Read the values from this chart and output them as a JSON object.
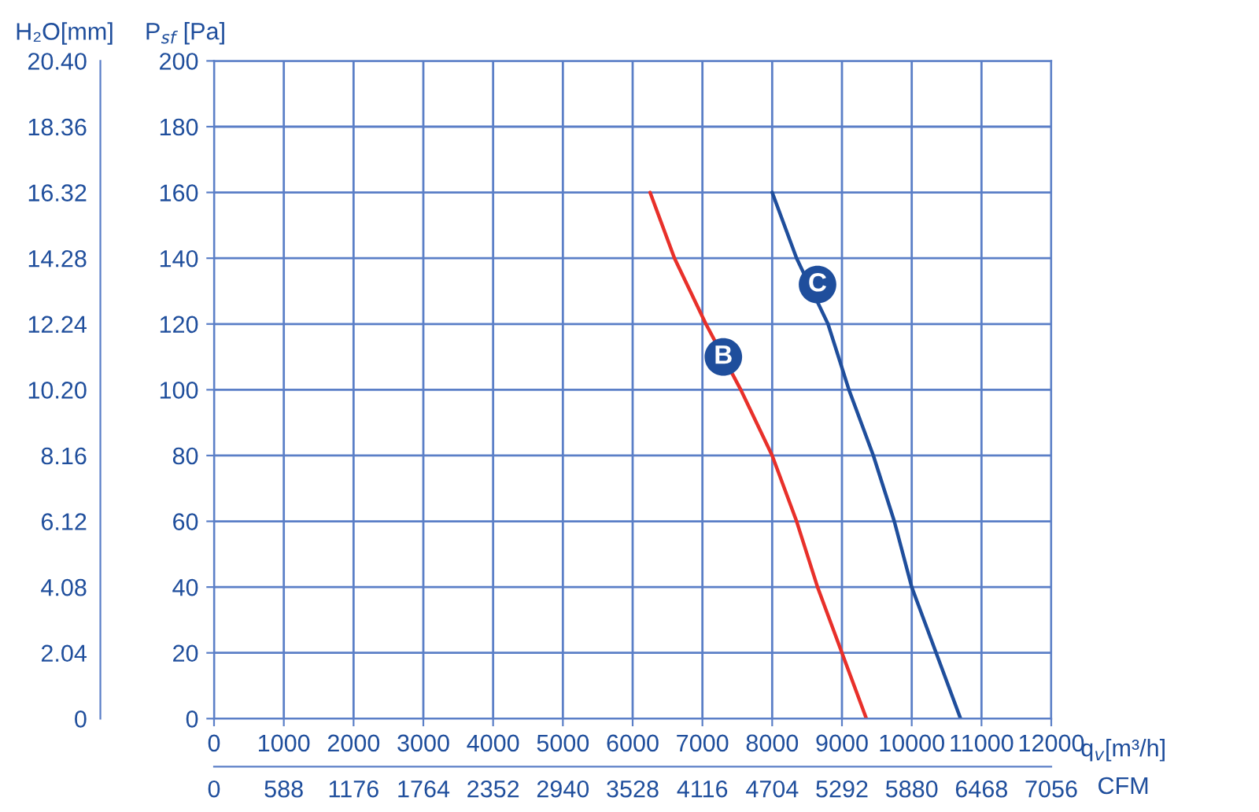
{
  "chart_data": {
    "type": "line",
    "xlabel": "q$_{v}$[m³/h]",
    "ylabel": "P$_{sf}$ [Pa]",
    "y2label": "H₂O[mm]",
    "x2label": "CFM",
    "xlim": [
      0,
      12000
    ],
    "xticks": [
      0,
      1000,
      2000,
      3000,
      4000,
      5000,
      6000,
      7000,
      8000,
      9000,
      10000,
      11000,
      12000
    ],
    "ylim": [
      0,
      200
    ],
    "yticks": [
      0,
      20,
      40,
      60,
      80,
      100,
      120,
      140,
      160,
      180,
      200
    ],
    "y2lim": [
      0,
      20.4
    ],
    "y2ticks": [
      0,
      2.04,
      4.08,
      6.12,
      8.16,
      {
        "value": 10.2,
        "label": "10.20"
      },
      12.24,
      14.28,
      16.32,
      18.36,
      {
        "value": 20.4,
        "label": "20.40"
      }
    ],
    "x2lim": [
      0,
      7056
    ],
    "x2ticks": [
      0,
      588,
      1176,
      1764,
      2352,
      2940,
      3528,
      4116,
      4704,
      5292,
      5880,
      6468,
      7056
    ],
    "grid": true,
    "marker": "none",
    "line_style": "solid",
    "series": [
      {
        "color": "#e8302a",
        "x": [
          6250,
          6600,
          7050,
          7550,
          8000,
          8350,
          8650,
          9000,
          9350
        ],
        "values": [
          160,
          140,
          120,
          100,
          80,
          60,
          40,
          20,
          0
        ]
      },
      {
        "color": "#1f4e9c",
        "x": [
          8000,
          8350,
          8800,
          9100,
          9450,
          9750,
          10000,
          10350,
          10700
        ],
        "values": [
          160,
          140,
          120,
          100,
          80,
          60,
          40,
          20,
          0
        ]
      }
    ],
    "annotations": [
      {
        "text": "B",
        "x": 7300,
        "y": 110
      },
      {
        "text": "C",
        "x": 8650,
        "y": 132
      }
    ]
  }
}
